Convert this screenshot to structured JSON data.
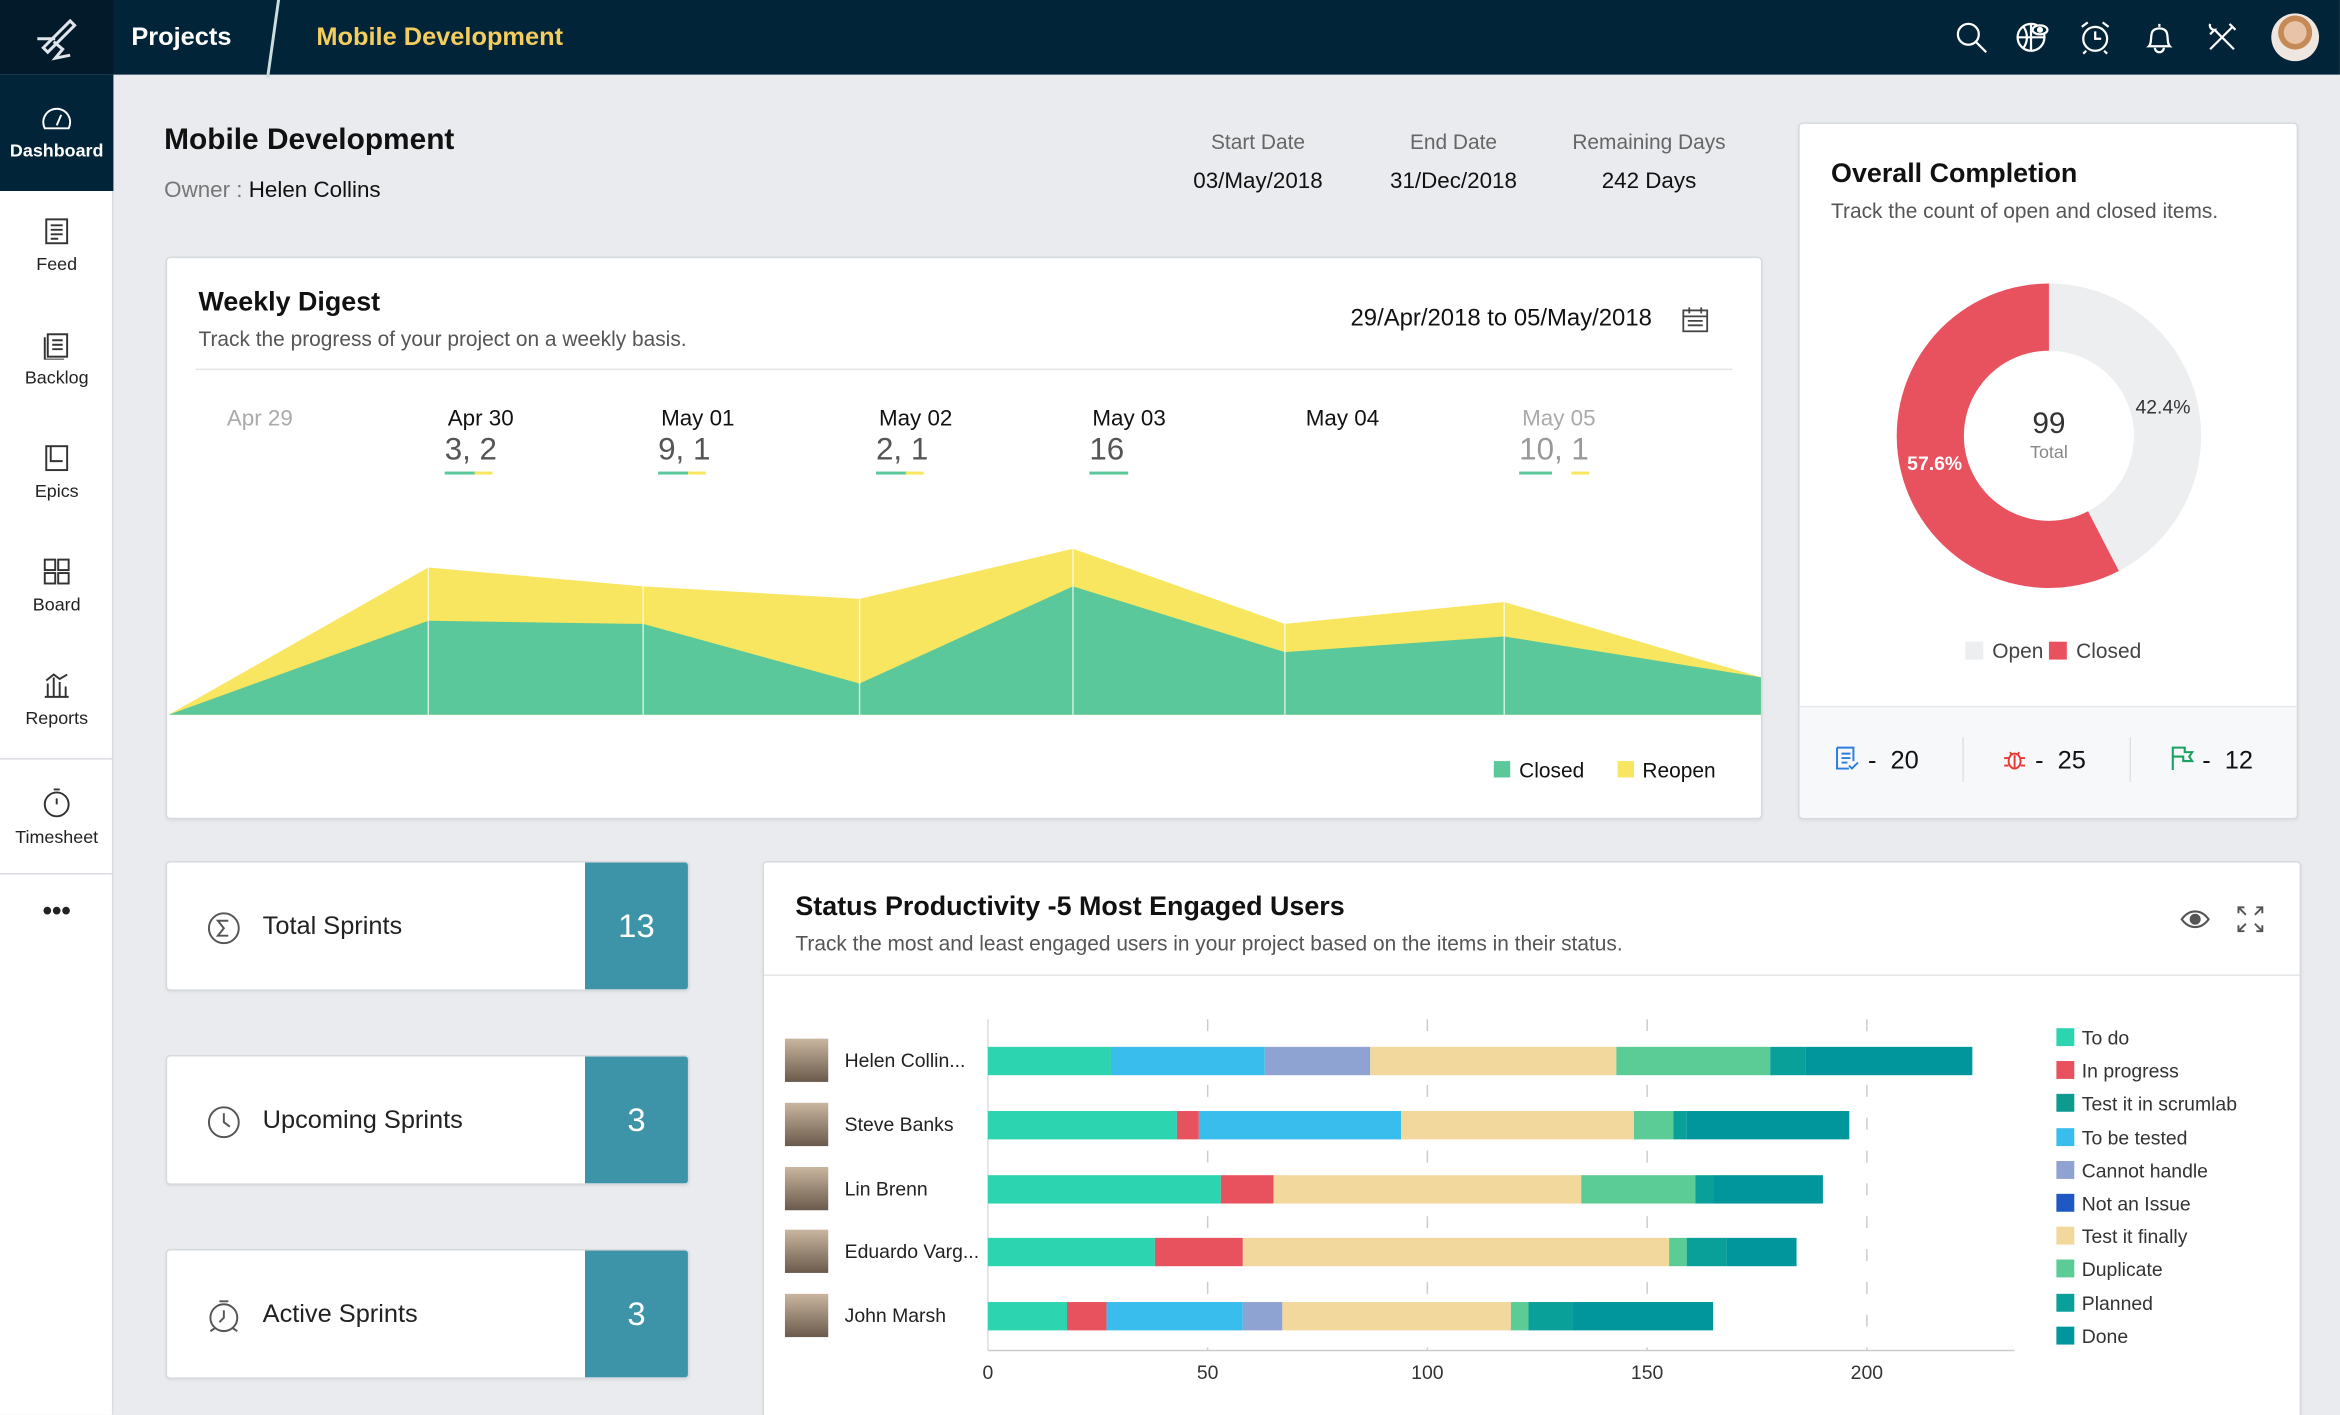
{
  "topbar": {
    "projects_label": "Projects",
    "breadcrumb_current": "Mobile Development",
    "icons": [
      "search-icon",
      "globe-eye-icon",
      "alarm-clock-icon",
      "bell-icon",
      "tools-icon",
      "user-avatar"
    ]
  },
  "sidebar": {
    "items": [
      {
        "label": "Dashboard",
        "icon": "gauge-icon",
        "active": true
      },
      {
        "label": "Feed",
        "icon": "feed-icon"
      },
      {
        "label": "Backlog",
        "icon": "backlog-icon"
      },
      {
        "label": "Epics",
        "icon": "epics-icon"
      },
      {
        "label": "Board",
        "icon": "board-icon"
      },
      {
        "label": "Reports",
        "icon": "reports-icon"
      },
      {
        "label": "Timesheet",
        "icon": "stopwatch-icon"
      }
    ],
    "more_label": "•••"
  },
  "project": {
    "title": "Mobile Development",
    "owner_label": "Owner :",
    "owner": "Helen Collins",
    "dates": [
      {
        "label": "Start Date",
        "value": "03/May/2018"
      },
      {
        "label": "End Date",
        "value": "31/Dec/2018"
      },
      {
        "label": "Remaining Days",
        "value": "242 Days"
      }
    ]
  },
  "weekly": {
    "title": "Weekly Digest",
    "subtitle": "Track the progress of your project on a weekly basis.",
    "range_from": "29/Apr/2018",
    "range_to_word": "to",
    "range_to": "05/May/2018",
    "days": [
      {
        "label": "Apr 29",
        "counts": "",
        "muted": true,
        "closed": false,
        "reopen": false
      },
      {
        "label": "Apr 30",
        "counts": "3, 2",
        "closed": true,
        "reopen": true
      },
      {
        "label": "May 01",
        "counts": "9, 1",
        "closed": true,
        "reopen": true
      },
      {
        "label": "May 02",
        "counts": "2, 1",
        "closed": true,
        "reopen": true
      },
      {
        "label": "May 03",
        "counts": "16",
        "closed": true,
        "reopen": false
      },
      {
        "label": "May 04",
        "counts": ""
      },
      {
        "label": "May 05",
        "counts": "10, 1",
        "muted": true,
        "closed": true,
        "reopen": true
      }
    ],
    "legend": {
      "closed": "Closed",
      "reopen": "Reopen"
    },
    "colors": {
      "closed": "#5ac89a",
      "reopen": "#f8e660"
    }
  },
  "chart_data": [
    {
      "type": "area",
      "stacked": true,
      "x": [
        "",
        "Apr 30",
        "May 01",
        "May 02",
        "May 03",
        "May 04",
        "May 05",
        ""
      ],
      "series": [
        {
          "name": "Closed",
          "values": [
            0,
            3,
            2.9,
            1,
            4.1,
            2,
            2.5,
            1.2
          ]
        },
        {
          "name": "Reopen",
          "values": [
            0,
            1.7,
            1.2,
            2.7,
            1.2,
            0.9,
            1.1,
            0
          ]
        }
      ],
      "grid": false,
      "legend": "bottom-right"
    },
    {
      "type": "pie",
      "donut": true,
      "title": "Overall Completion",
      "center_value": "99",
      "center_label": "Total",
      "slices": [
        {
          "name": "Open",
          "value": 42.4,
          "label": "42.4%",
          "color": "#eceef0"
        },
        {
          "name": "Closed",
          "value": 57.6,
          "label": "57.6%",
          "color": "#e8525f"
        }
      ],
      "legend": "bottom"
    },
    {
      "type": "bar",
      "orientation": "horizontal",
      "stacked": true,
      "title": "Status Productivity -5 Most Engaged Users",
      "xlim": [
        0,
        225
      ],
      "xticks": [
        "0",
        "50",
        "100",
        "150",
        "200"
      ],
      "grid": true,
      "legend": "right",
      "categories": [
        "Helen Collin...",
        "Steve Banks",
        "Lin Brenn",
        "Eduardo Varg...",
        "John Marsh"
      ],
      "series": [
        {
          "name": "To do",
          "color": "#2dd4b0",
          "values": [
            28,
            43,
            53,
            38,
            18
          ]
        },
        {
          "name": "In progress",
          "color": "#e8525f",
          "values": [
            0,
            5,
            12,
            20,
            9
          ]
        },
        {
          "name": "Test it in scrumlab",
          "color": "#0e9b8f",
          "values": [
            0,
            0,
            0,
            0,
            0
          ]
        },
        {
          "name": "To be tested",
          "color": "#38bdec",
          "values": [
            35,
            46,
            0,
            0,
            31
          ]
        },
        {
          "name": "Cannot handle",
          "color": "#8fa3d3",
          "values": [
            24,
            0,
            0,
            0,
            9
          ]
        },
        {
          "name": "Not an Issue",
          "color": "#1f57c3",
          "values": [
            0,
            0,
            0,
            0,
            0
          ]
        },
        {
          "name": "Test it finally",
          "color": "#f2d89d",
          "values": [
            56,
            53,
            70,
            97,
            52
          ]
        },
        {
          "name": "Duplicate",
          "color": "#5ccc96",
          "values": [
            35,
            9,
            26,
            4,
            4
          ]
        },
        {
          "name": "Planned",
          "color": "#0aa09a",
          "values": [
            8,
            3,
            4,
            9,
            10
          ]
        },
        {
          "name": "Done",
          "color": "#00969b",
          "values": [
            38,
            37,
            25,
            16,
            32
          ]
        }
      ]
    }
  ],
  "completion": {
    "title": "Overall Completion",
    "subtitle": "Track the count of open and closed items.",
    "stats": [
      {
        "icon": "task-list-icon",
        "value": "20",
        "color": "#2a7de1"
      },
      {
        "icon": "bug-icon",
        "value": "25",
        "color": "#e53935"
      },
      {
        "icon": "milestone-flag-icon",
        "value": "12",
        "color": "#1aa260"
      }
    ],
    "sep": "-"
  },
  "sprints": [
    {
      "label": "Total Sprints",
      "value": "13",
      "icon": "sigma-icon"
    },
    {
      "label": "Upcoming Sprints",
      "value": "3",
      "icon": "clock-icon"
    },
    {
      "label": "Active Sprints",
      "value": "3",
      "icon": "running-clock-icon"
    }
  ],
  "status": {
    "title": "Status Productivity -5 Most Engaged Users",
    "subtitle": "Track the most and least engaged users in your project based on the items in their status.",
    "icons": [
      "eye-icon",
      "expand-icon"
    ]
  }
}
